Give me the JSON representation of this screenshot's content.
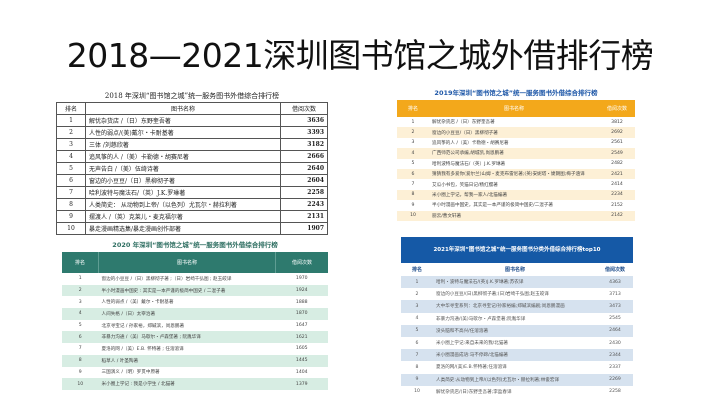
{
  "slide": {
    "title": "2018—2021深圳图书馆之城外借排行榜"
  },
  "columns": {
    "rank": "排名",
    "title": "图书名称",
    "count": "借阅次数"
  },
  "table_2018": {
    "caption": "2018 年深圳“图书馆之城”统一服务图书外借综合排行榜",
    "rows": [
      {
        "rank": "1",
        "title": "解忧杂货店 /（日）东野奎吾著",
        "count": "3636"
      },
      {
        "rank": "2",
        "title": "人性的弱点/(美)戴尔・卡耐基著",
        "count": "3393"
      },
      {
        "rank": "3",
        "title": "三体 /刘慈欣著",
        "count": "3182"
      },
      {
        "rank": "4",
        "title": "追风筝的人 /（美）卡勒德・胡赛尼著",
        "count": "2666"
      },
      {
        "rank": "5",
        "title": "无声告白 /（美）伍绮诗著",
        "count": "2640"
      },
      {
        "rank": "6",
        "title": "窗边的小豆豆/（日）黑柳彻子著",
        "count": "2604"
      },
      {
        "rank": "7",
        "title": "哈利波特与魔法石/（英）J.K.罗琳著",
        "count": "2258"
      },
      {
        "rank": "8",
        "title": "人类简史： 从动物到上帝/（以色列）尤瓦尔・赫拉利著",
        "count": "2243"
      },
      {
        "rank": "9",
        "title": "摆渡人 /（英）克莱儿・麦克福尔著",
        "count": "2131"
      },
      {
        "rank": "10",
        "title": "暴走漫画精选集/暴走漫画创作部著",
        "count": "1907"
      }
    ]
  },
  "table_2019": {
    "caption": "2019年深圳“图书馆之城”统一服务图书外借综合排行榜",
    "header_color": "#f3a81b",
    "rows": [
      {
        "rank": "1",
        "title": "解忧杂货店 /（日）东野奎吾著",
        "count": "3812"
      },
      {
        "rank": "2",
        "title": "窗边的小豆豆/（日）黑柳彻子著",
        "count": "2692"
      },
      {
        "rank": "3",
        "title": "追风筝的人 /（美）卡勒德・胡赛尼著",
        "count": "2561"
      },
      {
        "rank": "4",
        "title": "广西师范公司承编,胡城凯,尚恩鹏著",
        "count": "2549"
      },
      {
        "rank": "5",
        "title": "哈利波特与魔法石/（英）J.K.罗琳著",
        "count": "2482"
      },
      {
        "rank": "6",
        "title": "猜猜我有多爱你(爱尔兰)山姆・麦克布雷尼著;(英)安妮塔・婕朗图;梅子涵译",
        "count": "2421"
      },
      {
        "rank": "7",
        "title": "艾瓜小书包，笑猫日记/杨红樱著",
        "count": "2414"
      },
      {
        "rank": "8",
        "title": "米小圈上学记，帮我一家人/北猫编著",
        "count": "2234"
      },
      {
        "rank": "9",
        "title": "半小时漫画中国史，其实是一本严谨的极简中国史/二混子著",
        "count": "2152"
      },
      {
        "rank": "10",
        "title": "丽云/曹文轩著",
        "count": "2142"
      }
    ]
  },
  "table_2020": {
    "caption": "2020 年深圳“图书馆之城”统一服务图书外借综合排行榜",
    "header_color": "#2e7a6e",
    "rows": [
      {
        "rank": "1",
        "title": "窗边的小豆豆 /（日）黑柳彻子著 ;（日）岩崎千弘图 ; 赵玉皎译",
        "count": "1970"
      },
      {
        "rank": "2",
        "title": "半小时漫画中国史 : 其实是一本严谨的极简中国史 / 二混子著",
        "count": "1924"
      },
      {
        "rank": "3",
        "title": "人性的弱点 /（美）戴尔・卡耐基著",
        "count": "1888"
      },
      {
        "rank": "4",
        "title": "人间失格 /（日）太宰治著",
        "count": "1870"
      },
      {
        "rank": "5",
        "title": "北京寻宝记 / 孙家裕，郑碱滨，尚恩鹏著",
        "count": "1647"
      },
      {
        "rank": "6",
        "title": "非暴力沟通 /（美）马歇尔・卢森堡著 ; 阮胤华译",
        "count": "1621"
      },
      {
        "rank": "7",
        "title": "夏洛的网 /（美）E.B. 怀特著 ; 任溶溶译",
        "count": "1605"
      },
      {
        "rank": "8",
        "title": "稻草人 / 叶圣陶著",
        "count": "1445"
      },
      {
        "rank": "9",
        "title": "三国演义 /（明）罗贯中原著",
        "count": "1404"
      },
      {
        "rank": "10",
        "title": "米小圈上学记 : 我是小学生 / 北猫著",
        "count": "1379"
      }
    ]
  },
  "table_2021": {
    "caption": "2021年深圳“图书馆之城”统一服务图书分类外借综合排行榜top10",
    "header_color": "#1559a6",
    "rows": [
      {
        "rank": "1",
        "title": "哈利・波特与魔法石/(英)J.K.罗琳著;苏农译",
        "count": "4363"
      },
      {
        "rank": "2",
        "title": "窗边的小豆豆/(日)黑柳彻子著;(日)岩崎千弘图;赵玉皎译",
        "count": "3713"
      },
      {
        "rank": "3",
        "title": "大中华寻宝系列：北京寻宝记/孙家裕编;郑碱滨编剧;尚恩鹏漫画",
        "count": "3473"
      },
      {
        "rank": "4",
        "title": "非暴力沟通/(美)马歇尔・卢森堡著;阮胤华译",
        "count": "2545"
      },
      {
        "rank": "5",
        "title": "没头脑和不高兴/任溶溶著",
        "count": "2464"
      },
      {
        "rank": "6",
        "title": "米小圈上学记:来自未来的我/北猫著",
        "count": "2430"
      },
      {
        "rank": "7",
        "title": "米小圈漫画成语:马不停蹄/北猫编著",
        "count": "2344"
      },
      {
        "rank": "8",
        "title": "夏洛的网/(美)E.B.怀特著;任溶溶译",
        "count": "2337"
      },
      {
        "rank": "9",
        "title": "人类简史:从动物到上帝/(以色列)尤瓦尔・赫拉利著;林俊宏译",
        "count": "2269"
      },
      {
        "rank": "10",
        "title": "解忧杂货店/(日)东野圭吾著;李盈春译",
        "count": "2258"
      }
    ]
  }
}
